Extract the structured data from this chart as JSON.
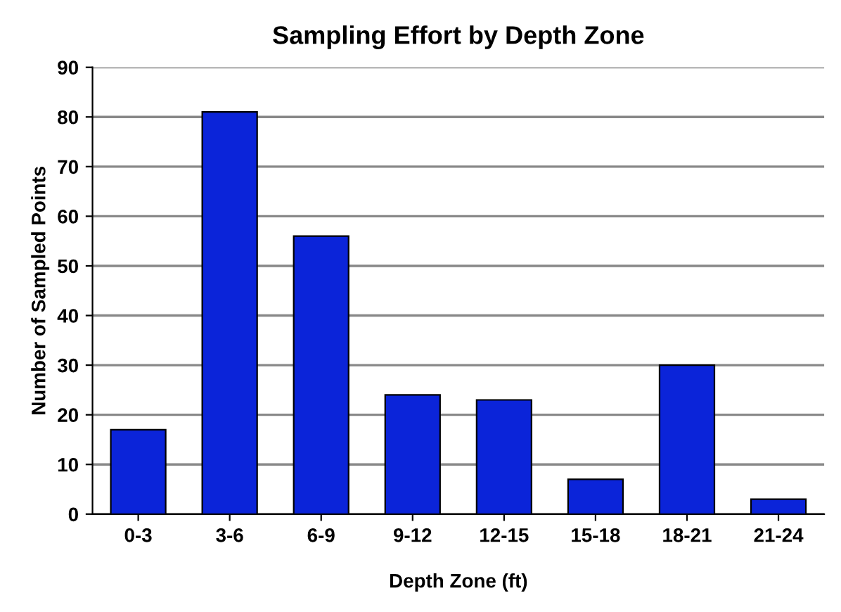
{
  "chart_data": {
    "type": "bar",
    "title": "Sampling Effort by Depth Zone",
    "xlabel": "Depth Zone (ft)",
    "ylabel": "Number of Sampled Points",
    "categories": [
      "0-3",
      "3-6",
      "6-9",
      "9-12",
      "12-15",
      "15-18",
      "18-21",
      "21-24"
    ],
    "values": [
      17,
      81,
      56,
      24,
      23,
      7,
      30,
      3
    ],
    "color": "#0b24d9",
    "ylim": [
      0,
      90
    ],
    "yticks": [
      0,
      10,
      20,
      30,
      40,
      50,
      60,
      70,
      80,
      90
    ],
    "grid": "y"
  }
}
